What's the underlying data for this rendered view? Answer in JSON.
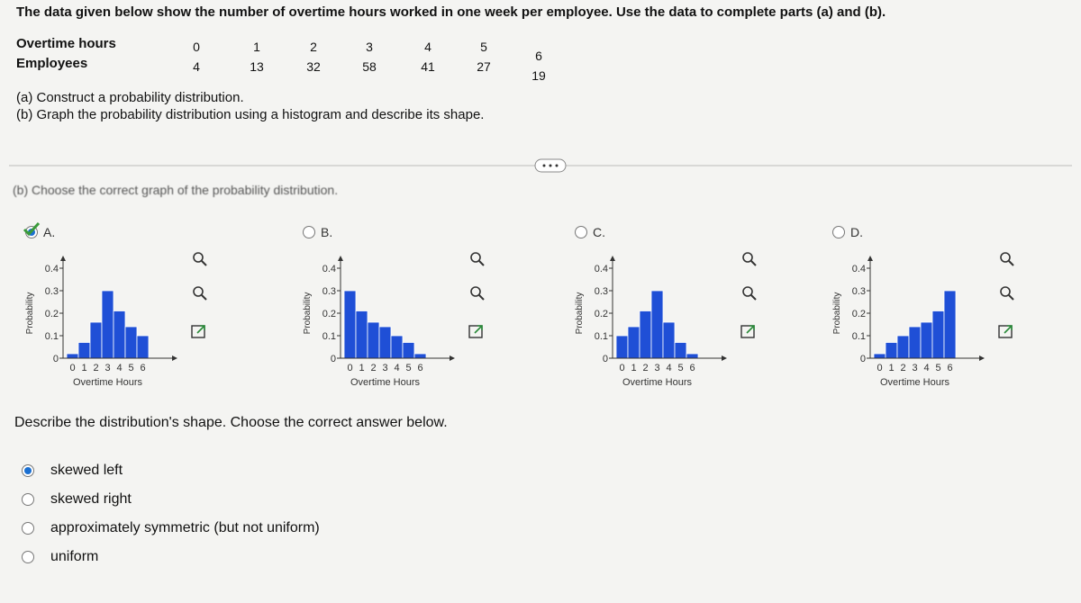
{
  "header": {
    "text": "The data given below show the number of overtime hours worked in one week per employee. Use the data to complete parts (a) and (b)."
  },
  "table": {
    "rows": [
      [
        "Overtime hours",
        0,
        1,
        2,
        3,
        4,
        5,
        6
      ],
      [
        "Employees",
        4,
        13,
        32,
        58,
        41,
        27,
        19
      ]
    ]
  },
  "parts": [
    "(a) Construct a probability distribution.",
    "(b) Graph the probability distribution using a histogram and describe its shape."
  ],
  "section": "(b) Choose the correct graph of the probability distribution.",
  "selected_graph": 0,
  "graphs": [
    {
      "label": "A.",
      "ylabel": "Probability",
      "xlabel": "Overtime Hours",
      "categories": [
        0,
        1,
        2,
        3,
        4,
        5,
        6
      ],
      "values": [
        0.02,
        0.07,
        0.16,
        0.3,
        0.21,
        0.14,
        0.1
      ],
      "ylim": [
        0,
        0.4
      ],
      "yticks": [
        0,
        0.1,
        0.2,
        0.3,
        0.4
      ],
      "color": "#1f4fd6"
    },
    {
      "label": "B.",
      "ylabel": "Probability",
      "xlabel": "Overtime Hours",
      "categories": [
        0,
        1,
        2,
        3,
        4,
        5,
        6
      ],
      "values": [
        0.3,
        0.21,
        0.16,
        0.14,
        0.1,
        0.07,
        0.02
      ],
      "ylim": [
        0,
        0.4
      ],
      "yticks": [
        0,
        0.1,
        0.2,
        0.3,
        0.4
      ],
      "color": "#1f4fd6"
    },
    {
      "label": "C.",
      "ylabel": "Probability",
      "xlabel": "Overtime Hours",
      "categories": [
        0,
        1,
        2,
        3,
        4,
        5,
        6
      ],
      "values": [
        0.1,
        0.14,
        0.21,
        0.3,
        0.16,
        0.07,
        0.02
      ],
      "ylim": [
        0,
        0.4
      ],
      "yticks": [
        0,
        0.1,
        0.2,
        0.3,
        0.4
      ],
      "color": "#1f4fd6"
    },
    {
      "label": "D.",
      "ylabel": "Probability",
      "xlabel": "Overtime Hours",
      "categories": [
        0,
        1,
        2,
        3,
        4,
        5,
        6
      ],
      "values": [
        0.02,
        0.07,
        0.1,
        0.14,
        0.16,
        0.21,
        0.3
      ],
      "ylim": [
        0,
        0.4
      ],
      "yticks": [
        0,
        0.1,
        0.2,
        0.3,
        0.4
      ],
      "color": "#1f4fd6"
    }
  ],
  "question": "Describe the distribution's shape. Choose the correct answer below.",
  "answers": [
    "skewed left",
    "skewed right",
    "approximately symmetric (but not uniform)",
    "uniform"
  ],
  "selected_answer": 0
}
